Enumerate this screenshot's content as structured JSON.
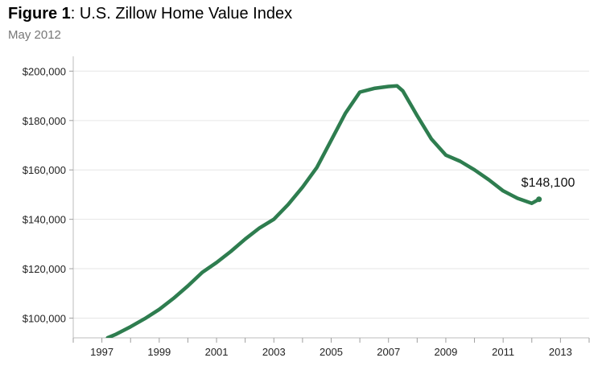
{
  "header": {
    "title_prefix": "Figure 1",
    "title_sep": ":",
    "title_rest": " U.S. Zillow Home Value Index",
    "subtitle": "May 2012"
  },
  "chart_data": {
    "type": "line",
    "title": "U.S. Zillow Home Value Index",
    "subtitle": "May 2012",
    "xlabel": "",
    "ylabel": "",
    "x_ticks": [
      "1997",
      "1999",
      "2001",
      "2003",
      "2005",
      "2007",
      "2009",
      "2011",
      "2013"
    ],
    "y_ticks": [
      "$100,000",
      "$120,000",
      "$140,000",
      "$160,000",
      "$180,000",
      "$200,000"
    ],
    "xlim": [
      1996.0,
      2014.0
    ],
    "ylim": [
      92000,
      206000
    ],
    "grid": "horizontal",
    "line_color": "#2e7d4f",
    "series": [
      {
        "x": [
          1997.2,
          1997.5,
          1998.0,
          1998.5,
          1999.0,
          1999.5,
          2000.0,
          2000.5,
          2001.0,
          2001.5,
          2002.0,
          2002.5,
          2003.0,
          2003.5,
          2004.0,
          2004.5,
          2005.0,
          2005.5,
          2006.0,
          2006.5,
          2007.0,
          2007.3,
          2007.5,
          2008.0,
          2008.5,
          2009.0,
          2009.5,
          2010.0,
          2010.5,
          2011.0,
          2011.5,
          2012.0,
          2012.25
        ],
        "y": [
          92000,
          93500,
          96500,
          99800,
          103500,
          108000,
          113000,
          118500,
          122500,
          127000,
          132000,
          136500,
          140000,
          146000,
          153000,
          161000,
          172000,
          183000,
          191500,
          193000,
          193800,
          194000,
          192000,
          182000,
          172500,
          166000,
          163500,
          160000,
          156000,
          151500,
          148500,
          146500,
          148100
        ]
      }
    ],
    "annotations": [
      {
        "text": "$148,100",
        "x": 2012.25,
        "y": 148100
      }
    ]
  }
}
